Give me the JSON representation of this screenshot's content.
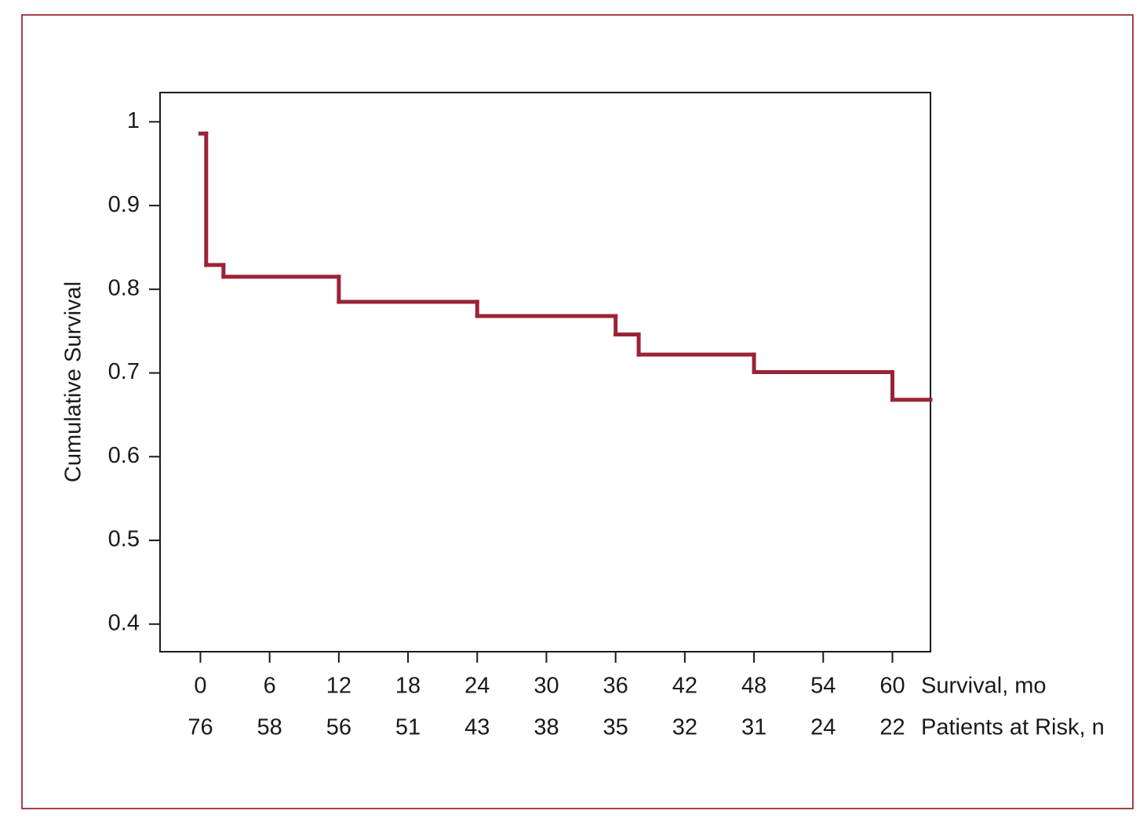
{
  "chart_data": {
    "type": "step",
    "y_label": "Cumulative Survival",
    "x_label": "Survival, mo",
    "risk_label": "Patients at Risk, n",
    "x": [
      0,
      0.5,
      2,
      12,
      24,
      36,
      38,
      48,
      60
    ],
    "values": [
      0.986,
      0.829,
      0.815,
      0.785,
      0.768,
      0.746,
      0.722,
      0.701,
      0.668
    ],
    "color": "#9b2335",
    "xlim": [
      -3.5,
      63.3
    ],
    "xticks": [
      0,
      6,
      12,
      18,
      24,
      30,
      36,
      42,
      48,
      54,
      60
    ],
    "ylim": [
      0.367,
      1.035
    ],
    "yticks": [
      0.4,
      0.5,
      0.6,
      0.7,
      0.8,
      0.9,
      1
    ],
    "risk_table": [
      76,
      58,
      56,
      51,
      43,
      38,
      35,
      32,
      31,
      24,
      22
    ]
  }
}
